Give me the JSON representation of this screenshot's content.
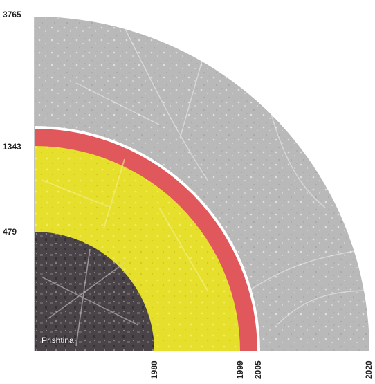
{
  "figure": {
    "y_labels": [
      "3765",
      "1343",
      "479"
    ],
    "x_labels": [
      "1980",
      "1999",
      "2005",
      "2020"
    ],
    "city_label": "Prishtina",
    "colors": {
      "outer_ring": "#b9b9b9",
      "red_ring": "#e0585c",
      "yellow_ring": "#e6e02c",
      "core": "#4a4448",
      "separator": "#ffffff"
    }
  }
}
